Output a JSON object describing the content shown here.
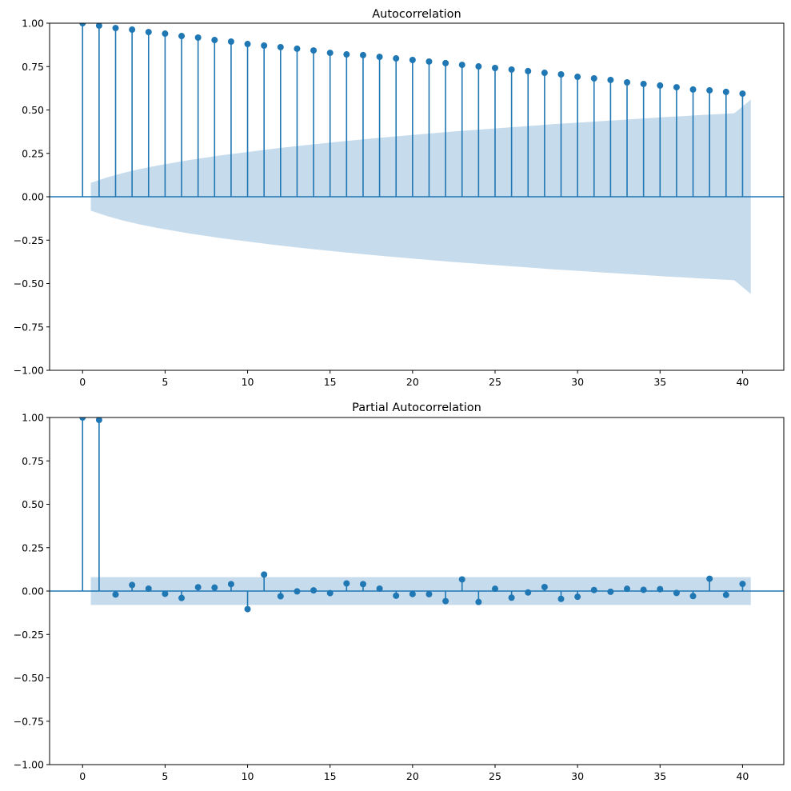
{
  "chart_data": [
    {
      "type": "stem",
      "title": "Autocorrelation",
      "xlabel": "",
      "ylabel": "",
      "xlim": [
        -2,
        42.5
      ],
      "ylim": [
        -1.0,
        1.0
      ],
      "xticks": [
        0,
        5,
        10,
        15,
        20,
        25,
        30,
        35,
        40
      ],
      "xtick_labels": [
        "0",
        "5",
        "10",
        "15",
        "20",
        "25",
        "30",
        "35",
        "40"
      ],
      "yticks": [
        -1.0,
        -0.75,
        -0.5,
        -0.25,
        0.0,
        0.25,
        0.5,
        0.75,
        1.0
      ],
      "ytick_labels": [
        "−1.00",
        "−0.75",
        "−0.50",
        "−0.25",
        "0.00",
        "0.25",
        "0.50",
        "0.75",
        "1.00"
      ],
      "grid": false,
      "lags": [
        0,
        1,
        2,
        3,
        4,
        5,
        6,
        7,
        8,
        9,
        10,
        11,
        12,
        13,
        14,
        15,
        16,
        17,
        18,
        19,
        20,
        21,
        22,
        23,
        24,
        25,
        26,
        27,
        28,
        29,
        30,
        31,
        32,
        33,
        34,
        35,
        36,
        37,
        38,
        39,
        40
      ],
      "values": [
        1.0,
        0.986,
        0.972,
        0.963,
        0.949,
        0.94,
        0.926,
        0.917,
        0.903,
        0.894,
        0.88,
        0.871,
        0.862,
        0.853,
        0.843,
        0.829,
        0.82,
        0.816,
        0.806,
        0.797,
        0.788,
        0.779,
        0.77,
        0.76,
        0.751,
        0.742,
        0.733,
        0.724,
        0.714,
        0.705,
        0.691,
        0.682,
        0.673,
        0.659,
        0.65,
        0.641,
        0.631,
        0.618,
        0.613,
        0.604,
        0.594
      ],
      "confint_band": {
        "x": [
          0.5,
          1.5,
          2.5,
          3.5,
          4.5,
          5.5,
          6.5,
          7.5,
          8.5,
          9.5,
          10.5,
          11.5,
          12.5,
          13.5,
          14.5,
          15.5,
          16.5,
          17.5,
          18.5,
          19.5,
          20.5,
          21.5,
          22.5,
          23.5,
          24.5,
          25.5,
          26.5,
          27.5,
          28.5,
          29.5,
          30.5,
          31.5,
          32.5,
          33.5,
          34.5,
          35.5,
          36.5,
          37.5,
          38.5,
          39.5,
          40.5
        ],
        "halfwidth": [
          0.08,
          0.112,
          0.138,
          0.16,
          0.179,
          0.196,
          0.212,
          0.226,
          0.24,
          0.252,
          0.264,
          0.276,
          0.287,
          0.297,
          0.307,
          0.317,
          0.326,
          0.335,
          0.344,
          0.352,
          0.36,
          0.368,
          0.376,
          0.383,
          0.39,
          0.397,
          0.404,
          0.411,
          0.418,
          0.424,
          0.43,
          0.436,
          0.442,
          0.448,
          0.454,
          0.46,
          0.465,
          0.471,
          0.476,
          0.481,
          0.56
        ]
      },
      "colors": {
        "stem": "#1f77b4",
        "band": "#c6dbec",
        "zero_line": "#1f77b4"
      }
    },
    {
      "type": "stem",
      "title": "Partial Autocorrelation",
      "xlabel": "",
      "ylabel": "",
      "xlim": [
        -2,
        42.5
      ],
      "ylim": [
        -1.0,
        1.0
      ],
      "xticks": [
        0,
        5,
        10,
        15,
        20,
        25,
        30,
        35,
        40
      ],
      "xtick_labels": [
        "0",
        "5",
        "10",
        "15",
        "20",
        "25",
        "30",
        "35",
        "40"
      ],
      "yticks": [
        -1.0,
        -0.75,
        -0.5,
        -0.25,
        0.0,
        0.25,
        0.5,
        0.75,
        1.0
      ],
      "ytick_labels": [
        "−1.00",
        "−0.75",
        "−0.50",
        "−0.25",
        "0.00",
        "0.25",
        "0.50",
        "0.75",
        "1.00"
      ],
      "grid": false,
      "lags": [
        0,
        1,
        2,
        3,
        4,
        5,
        6,
        7,
        8,
        9,
        10,
        11,
        12,
        13,
        14,
        15,
        16,
        17,
        18,
        19,
        20,
        21,
        22,
        23,
        24,
        25,
        26,
        27,
        28,
        29,
        30,
        31,
        32,
        33,
        34,
        35,
        36,
        37,
        38,
        39,
        40
      ],
      "values": [
        1.0,
        0.986,
        -0.02,
        0.035,
        0.014,
        -0.016,
        -0.04,
        0.022,
        0.02,
        0.04,
        -0.104,
        0.095,
        -0.03,
        -0.002,
        0.004,
        -0.012,
        0.044,
        0.04,
        0.014,
        -0.027,
        -0.017,
        -0.018,
        -0.058,
        0.067,
        -0.063,
        0.013,
        -0.038,
        -0.008,
        0.023,
        -0.045,
        -0.033,
        0.006,
        -0.004,
        0.013,
        0.007,
        0.011,
        -0.011,
        -0.029,
        0.071,
        -0.022,
        0.041
      ],
      "confint_band": {
        "x": [
          0.5,
          40.5
        ],
        "halfwidth": [
          0.08,
          0.08
        ]
      },
      "colors": {
        "stem": "#1f77b4",
        "band": "#c6dbec",
        "zero_line": "#1f77b4"
      }
    }
  ]
}
